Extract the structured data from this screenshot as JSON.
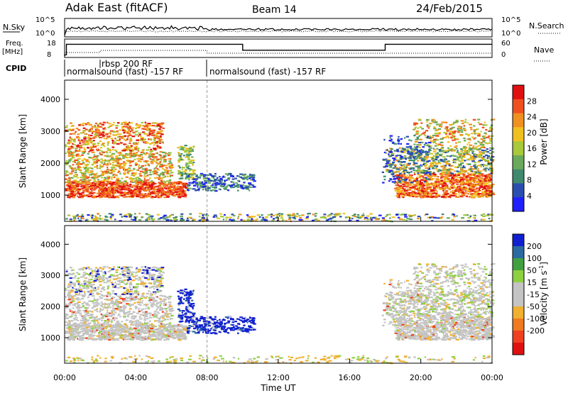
{
  "header": {
    "station": "Adak East (fitACF)",
    "beam": "Beam 14",
    "date": "24/Feb/2015"
  },
  "summary": {
    "left_top_label": "N.Sky",
    "left_top_ticks": [
      "10^5",
      "10^0"
    ],
    "right_top_label": "N.Search",
    "right_top_ticks": [
      "10^5",
      "10^0"
    ],
    "left_freq_label": "Freq.",
    "left_freq_unit": "[MHz]",
    "left_freq_ticks": [
      "18",
      "8"
    ],
    "right_nave_label": "Nave",
    "right_nave_ticks": [
      "60",
      "0"
    ],
    "cpid_label": "CPID",
    "cpid_programs": [
      {
        "name": "normalsound (fast) -157 RF",
        "start_hr": 0
      },
      {
        "name": "rbsp 200 RF",
        "start_hr": 2
      },
      {
        "name": "normalsound (fast) -157 RF",
        "start_hr": 8
      }
    ]
  },
  "colors": {
    "power_scale": [
      "#1f1fff",
      "#2a4db0",
      "#3f8a6e",
      "#6aaa5a",
      "#a8c93a",
      "#f0c020",
      "#f09020",
      "#f05020",
      "#e01010"
    ],
    "velocity_scale": [
      "#e01010",
      "#f04020",
      "#f07a20",
      "#f0b030",
      "#c4c4c4",
      "#c4c4c4",
      "#8ed040",
      "#40a040",
      "#2a6aa0",
      "#1020d0"
    ]
  },
  "chart_data": [
    {
      "type": "heatmap",
      "name": "power",
      "ylabel": "Slant Range [km]",
      "y_ticks": [
        1000,
        2000,
        3000,
        4000
      ],
      "ylim": [
        180,
        4600
      ],
      "x_ticks": [
        "00:00",
        "04:00",
        "08:00",
        "12:00",
        "16:00",
        "20:00",
        "00:00"
      ],
      "xlim_hours": [
        0,
        24
      ],
      "colorbar": {
        "label": "Power [dB]",
        "ticks": [
          "4",
          "8",
          "12",
          "16",
          "20",
          "24",
          "28"
        ],
        "range": [
          0,
          32
        ]
      },
      "features": [
        {
          "region": "band 1000-1400 km, 00:00-07:00",
          "value_db": 26
        },
        {
          "region": "scatter 1400-3300 km, 00:00-06:00",
          "value_db": 18
        },
        {
          "region": "band 1000-1800 km, 18:30-24:00",
          "value_db": 24
        },
        {
          "region": "scatter 1800-3300 km, 18:00-24:00",
          "value_db": 16
        },
        {
          "region": "patches 1200-1600 km, 07:00-10:30",
          "value_db": 6
        }
      ]
    },
    {
      "type": "heatmap",
      "name": "velocity",
      "ylabel": "Slant Range [km]",
      "y_ticks": [
        1000,
        2000,
        3000,
        4000
      ],
      "ylim": [
        180,
        4600
      ],
      "x_ticks": [
        "00:00",
        "04:00",
        "08:00",
        "12:00",
        "16:00",
        "20:00",
        "00:00"
      ],
      "xlim_hours": [
        0,
        24
      ],
      "xlabel": "Time UT",
      "colorbar": {
        "label": "Velocity [m s^-1]",
        "ticks": [
          "200",
          "100",
          "50",
          "15",
          "-15",
          "-50",
          "-100",
          "-200"
        ]
      },
      "features": [
        {
          "region": "1000-3300 km, 00:00-06:30",
          "value_ms": 0
        },
        {
          "region": "1300-1800 km, 06:30-10:30",
          "value_ms": 200
        },
        {
          "region": "1000-3300 km, 18:00-24:00",
          "value_ms": 0
        }
      ]
    }
  ]
}
